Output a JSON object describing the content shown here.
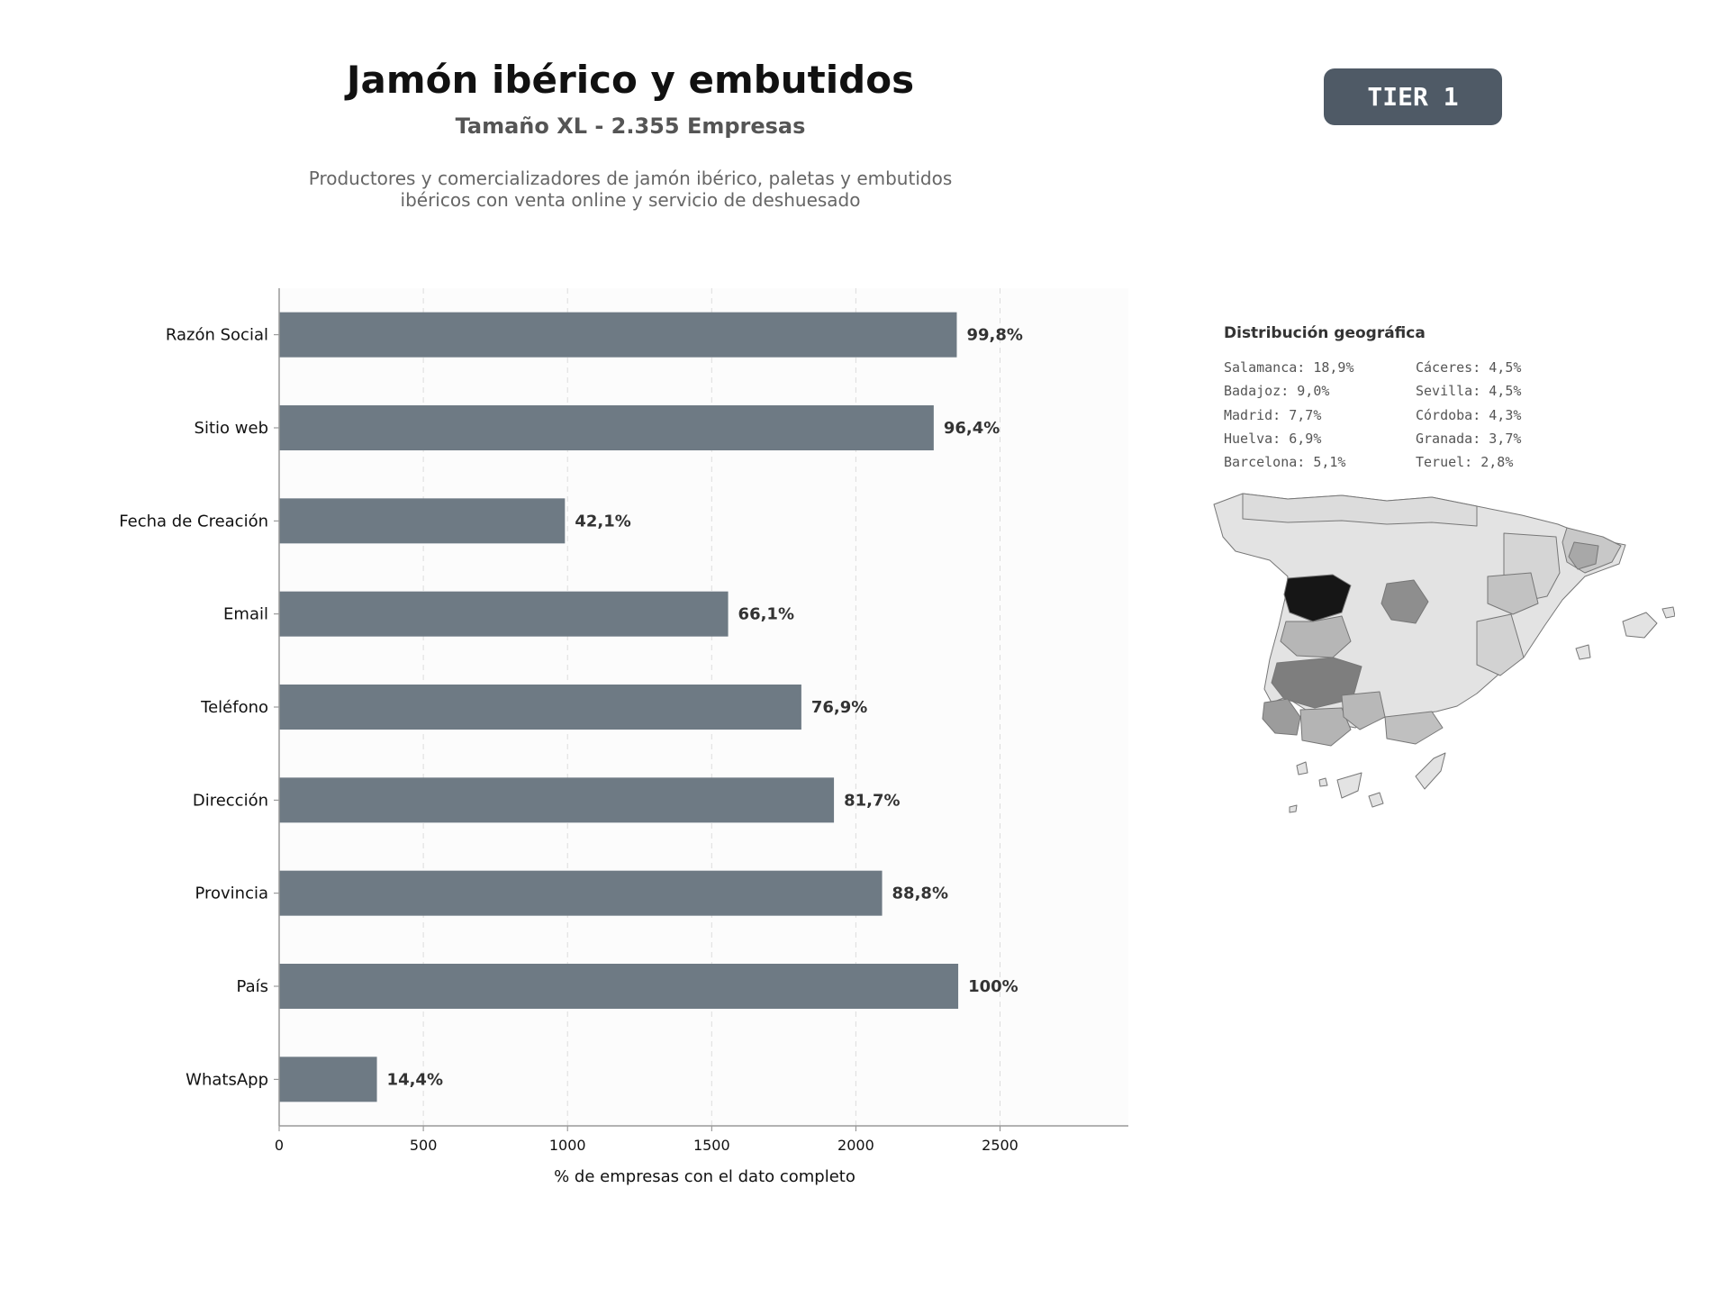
{
  "header": {
    "title": "Jamón ibérico y embutidos",
    "subtitle": "Tamaño XL - 2.355 Empresas",
    "description_line1": "Productores y comercializadores de jamón ibérico, paletas y embutidos",
    "description_line2": "ibéricos con venta online y servicio de deshuesado",
    "tier_badge": "TIER 1"
  },
  "colors": {
    "bar": "#6e7a84",
    "tier_badge": "#4f5a66",
    "map_high": "#1a1a1a",
    "map_low": "#e3e3e3"
  },
  "chart_data": {
    "type": "bar",
    "orientation": "horizontal",
    "categories": [
      "Razón Social",
      "Sitio web",
      "Fecha de Creación",
      "Email",
      "Teléfono",
      "Dirección",
      "Provincia",
      "País",
      "WhatsApp"
    ],
    "values": [
      2350,
      2270,
      991,
      1557,
      1811,
      1924,
      2091,
      2355,
      339
    ],
    "value_labels": [
      "99,8%",
      "96,4%",
      "42,1%",
      "66,1%",
      "76,9%",
      "81,7%",
      "88,8%",
      "100%",
      "14,4%"
    ],
    "xlabel": "% de empresas con el dato completo",
    "ylabel": "",
    "xlim": [
      0,
      2945
    ],
    "xticks": [
      "0",
      "500",
      "1000",
      "1500",
      "2000",
      "2500"
    ],
    "xtick_values": [
      0,
      500,
      1000,
      1500,
      2000,
      2500
    ],
    "grid": "vertical dashed",
    "legend": "none"
  },
  "geo": {
    "title": "Distribución geográfica",
    "items": [
      "Salamanca: 18,9%",
      "Cáceres: 4,5%",
      "Badajoz: 9,0%",
      "Sevilla: 4,5%",
      "Madrid: 7,7%",
      "Córdoba: 4,3%",
      "Huelva: 6,9%",
      "Granada: 3,7%",
      "Barcelona: 5,1%",
      "Teruel: 2,8%"
    ]
  }
}
